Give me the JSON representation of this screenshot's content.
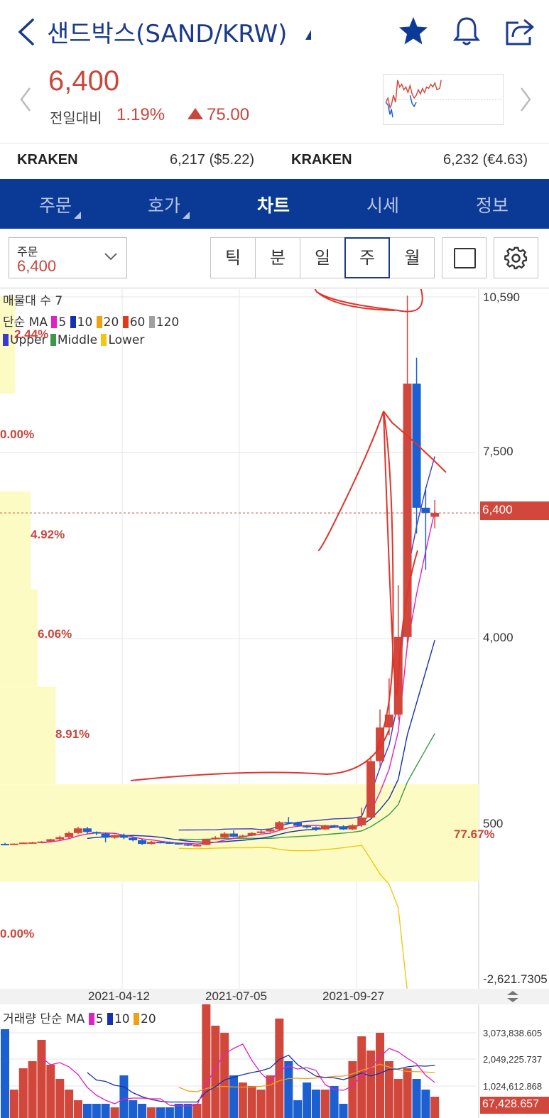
{
  "header": {
    "title": "샌드박스(SAND/KRW)"
  },
  "quote": {
    "price": "6,400",
    "change_label": "전일대비",
    "change_pct": "1.19%",
    "change_amount": "75.00"
  },
  "exchanges": [
    {
      "name": "KRAKEN",
      "value": "6,217 ($5.22)"
    },
    {
      "name": "KRAKEN",
      "value": "6,232 (€4.63)"
    }
  ],
  "tabs": [
    {
      "label": "주문"
    },
    {
      "label": "호가"
    },
    {
      "label": "차트"
    },
    {
      "label": "시세"
    },
    {
      "label": "정보"
    }
  ],
  "toolbar": {
    "order_label": "주문",
    "order_value": "6,400",
    "periods": [
      "틱",
      "분",
      "일",
      "주",
      "월"
    ],
    "selected_period": "주"
  },
  "legend": {
    "volume_profile": "매물대 수 7",
    "ma_prefix": "단순 MA",
    "ma": [
      "5",
      "10",
      "20",
      "60",
      "120"
    ],
    "bb": [
      "Upper",
      "Middle",
      "Lower"
    ],
    "vol_title": "거래량 단순 MA",
    "vol_ma": [
      "5",
      "10",
      "20"
    ]
  },
  "colors": {
    "up": "#d2473c",
    "down": "#1b5fd0",
    "ma5": "#e020c0",
    "ma10": "#1530b0",
    "ma20": "#f0a010",
    "ma60": "#e03a1a",
    "ma120": "#a0a0a0",
    "bb_upper": "#3a3ad0",
    "bb_middle": "#3a9a4a",
    "bb_lower": "#f0c810",
    "volume_profile": "#fdfbc4",
    "annotation": "#e0342a"
  },
  "chart_data": [
    {
      "type": "candlestick",
      "title": "",
      "xlabel": "",
      "ylabel": "",
      "x_ticks": [
        "2021-04-12",
        "2021-07-05",
        "2021-09-27"
      ],
      "y_ticks": [
        "10,590",
        "7,500",
        "4,000",
        "500",
        "-2,621.7305"
      ],
      "ylim": [
        -2621.7305,
        10590
      ],
      "current_price": "6,400",
      "volume_profile_pct": [
        "2.44%",
        "0.00%",
        "4.92%",
        "6.06%",
        "8.91%",
        "77.67%",
        "0.00%"
      ],
      "candles": [
        [
          0.0,
          0,
          -10,
          20,
          -25
        ],
        [
          0.98,
          -5,
          5,
          10,
          -10
        ],
        [
          1.97,
          5,
          25,
          30,
          0
        ],
        [
          2.95,
          25,
          30,
          40,
          15
        ],
        [
          3.93,
          30,
          45,
          55,
          20
        ],
        [
          4.91,
          45,
          90,
          100,
          35
        ],
        [
          5.9,
          90,
          130,
          160,
          70
        ],
        [
          6.88,
          130,
          210,
          240,
          110
        ],
        [
          7.86,
          210,
          300,
          330,
          190
        ],
        [
          8.85,
          300,
          230,
          330,
          200
        ],
        [
          9.83,
          230,
          200,
          240,
          170
        ],
        [
          10.81,
          200,
          120,
          220,
          30
        ],
        [
          11.8,
          120,
          170,
          180,
          100
        ],
        [
          12.78,
          170,
          120,
          200,
          90
        ],
        [
          13.76,
          120,
          70,
          140,
          50
        ],
        [
          14.74,
          70,
          0,
          100,
          -20
        ],
        [
          15.73,
          0,
          40,
          60,
          -10
        ],
        [
          16.72,
          40,
          30,
          50,
          10
        ],
        [
          17.7,
          30,
          15,
          45,
          0
        ],
        [
          18.68,
          15,
          -5,
          20,
          -15
        ],
        [
          19.67,
          -5,
          -30,
          0,
          -40
        ],
        [
          20.65,
          -30,
          -20,
          -10,
          -45
        ],
        [
          21.63,
          -20,
          90,
          100,
          -25
        ],
        [
          22.62,
          90,
          120,
          150,
          80
        ],
        [
          23.6,
          120,
          200,
          230,
          110
        ],
        [
          24.58,
          200,
          140,
          260,
          130
        ],
        [
          25.56,
          140,
          160,
          180,
          120
        ],
        [
          26.54,
          160,
          210,
          230,
          150
        ],
        [
          27.53,
          210,
          240,
          270,
          190
        ],
        [
          28.51,
          240,
          280,
          300,
          220
        ],
        [
          29.49,
          280,
          420,
          440,
          260
        ],
        [
          30.48,
          420,
          410,
          520,
          390
        ],
        [
          31.46,
          410,
          350,
          430,
          330
        ],
        [
          32.45,
          350,
          320,
          370,
          300
        ],
        [
          33.43,
          320,
          280,
          340,
          250
        ],
        [
          34.41,
          280,
          360,
          370,
          270
        ],
        [
          35.39,
          360,
          340,
          370,
          320
        ],
        [
          36.37,
          340,
          280,
          360,
          270
        ],
        [
          37.36,
          280,
          360,
          380,
          270
        ],
        [
          38.34,
          360,
          510,
          700,
          330
        ],
        [
          39.32,
          510,
          1600,
          1700,
          500
        ],
        [
          40.31,
          1600,
          2250,
          2600,
          1500
        ],
        [
          41.29,
          2250,
          2500,
          3200,
          2100
        ],
        [
          42.27,
          2500,
          4000,
          5000,
          2400
        ],
        [
          43.25,
          4000,
          8900,
          10600,
          3800
        ],
        [
          44.24,
          8900,
          6500,
          9400,
          6000
        ],
        [
          45.22,
          6500,
          6400,
          6900,
          5300
        ],
        [
          46.2,
          6325,
          6400,
          6650,
          6100
        ]
      ]
    },
    {
      "type": "bar",
      "title": "",
      "xlabel": "",
      "ylabel": "",
      "y_ticks": [
        "3,073,838.605",
        "2,049,225.737",
        "1,024,612.868"
      ],
      "current_volume": "67,428.657"
    }
  ]
}
